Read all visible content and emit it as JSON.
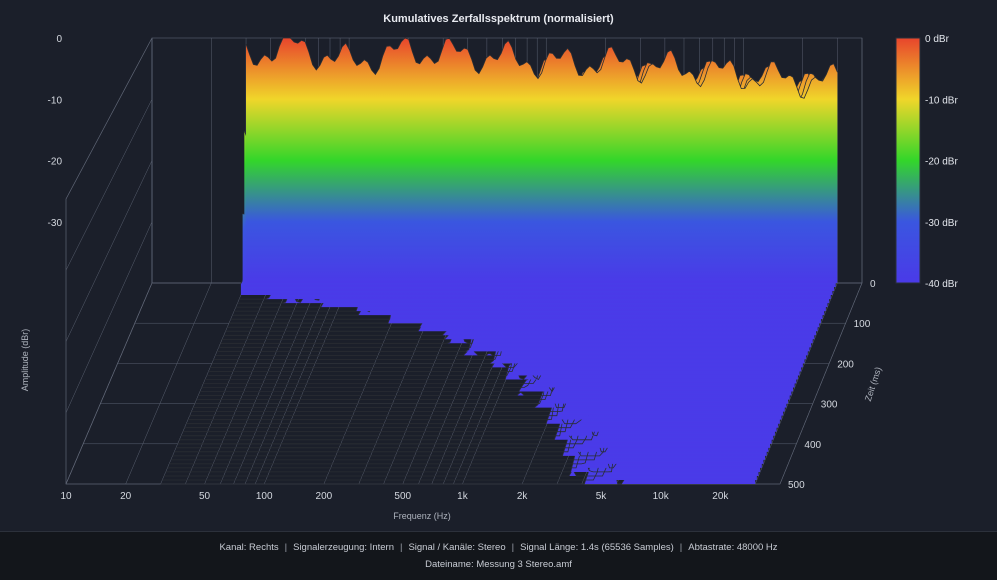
{
  "chart_data": {
    "type": "waterfall",
    "title": "Kumulatives Zerfallsspektrum (normalisiert)",
    "xlabel": "Frequenz (Hz)",
    "ylabel": "Amplitude (dBr)",
    "zlabel": "Zeit (ms)",
    "x_scale": "log",
    "xlim": [
      10,
      40000
    ],
    "ylim": [
      -40,
      0
    ],
    "zlim": [
      0,
      500
    ],
    "x_ticks": [
      "10",
      "20",
      "50",
      "100",
      "200",
      "500",
      "1k",
      "2k",
      "5k",
      "10k",
      "20k"
    ],
    "y_ticks": [
      "0",
      "-10",
      "-20",
      "-30"
    ],
    "z_ticks": [
      "0",
      "100",
      "200",
      "300",
      "400",
      "500"
    ],
    "colorbar": {
      "labels": [
        "0 dBr",
        "-10 dBr",
        "-20 dBr",
        "-30 dBr",
        "-40 dBr"
      ],
      "colors": [
        "#e8452c",
        "#f0d62a",
        "#33d62a",
        "#3a56e0",
        "#4a3ae8"
      ]
    },
    "slices_ms": [
      0,
      10,
      20,
      30,
      40,
      50,
      60,
      70,
      80,
      90,
      100,
      110,
      120,
      130,
      140,
      150,
      160,
      170,
      180,
      190,
      200,
      210,
      220,
      230,
      240,
      250,
      260,
      270,
      280,
      290,
      300,
      310,
      320,
      330,
      340,
      350,
      360,
      370,
      380,
      390,
      400,
      410,
      420,
      430,
      440,
      450,
      460,
      470,
      480,
      490,
      500
    ],
    "front_slice_dbr": {
      "freq_hz": [
        30,
        50,
        100,
        200,
        500,
        1000,
        2000,
        5000,
        10000,
        20000,
        30000
      ],
      "amplitude_dbr": [
        -3,
        -1,
        -4,
        -2,
        -3,
        -4,
        -4,
        -5,
        -6,
        -7,
        -7
      ]
    },
    "grid": true,
    "legend_position": "right"
  },
  "footer": {
    "kanal": "Kanal: Rechts",
    "signalerzeugung": "Signalerzeugung: Intern",
    "kanaele": "Signal / Kanäle: Stereo",
    "laenge": "Signal Länge: 1.4s (65536 Samples)",
    "abtastrate": "Abtastrate: 48000 Hz",
    "dateiname": "Dateiname: Messung 3 Stereo.amf",
    "separator": "|"
  }
}
